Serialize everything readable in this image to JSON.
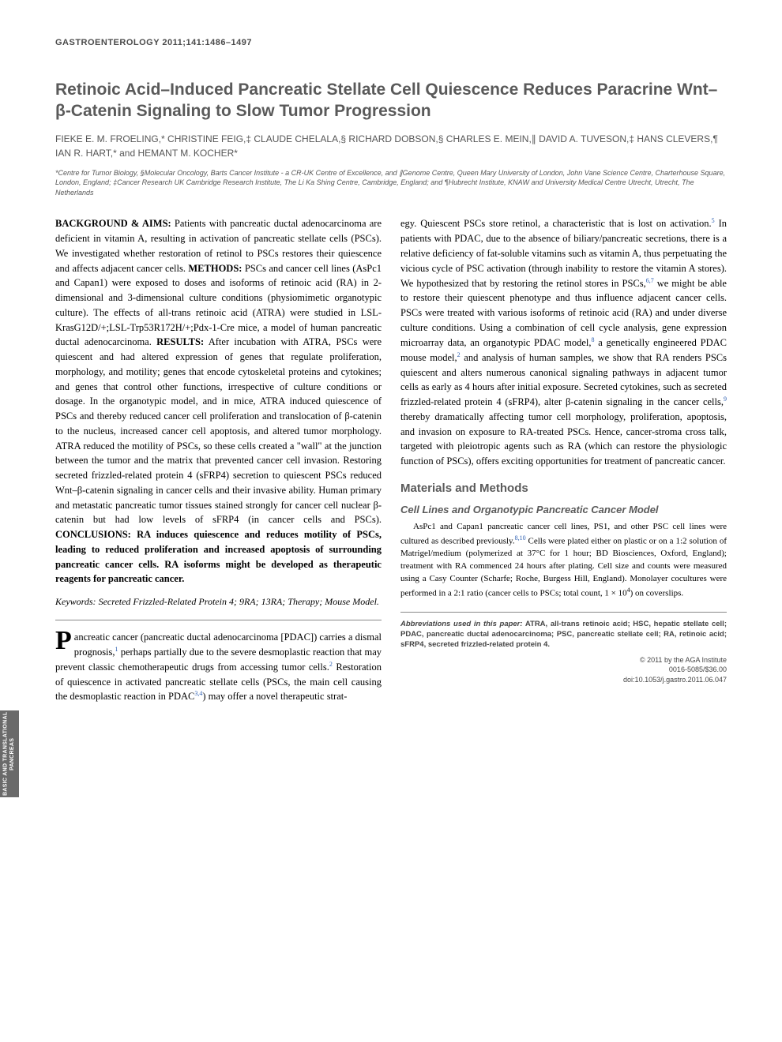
{
  "journal_header": "GASTROENTEROLOGY 2011;141:1486–1497",
  "title": "Retinoic Acid–Induced Pancreatic Stellate Cell Quiescence Reduces Paracrine Wnt–β-Catenin Signaling to Slow Tumor Progression",
  "authors": "FIEKE E. M. FROELING,* CHRISTINE FEIG,‡ CLAUDE CHELALA,§ RICHARD DOBSON,§ CHARLES E. MEIN,∥ DAVID A. TUVESON,‡ HANS CLEVERS,¶ IAN R. HART,* and HEMANT M. KOCHER*",
  "affiliations": "*Centre for Tumor Biology, §Molecular Oncology, Barts Cancer Institute - a CR-UK Centre of Excellence, and ∥Genome Centre, Queen Mary University of London, John Vane Science Centre, Charterhouse Square, London, England; ‡Cancer Research UK Cambridge Research Institute, The Li Ka Shing Centre, Cambridge, England; and ¶Hubrecht Institute, KNAW and University Medical Centre Utrecht, Utrecht, The Netherlands",
  "abstract": {
    "background_label": "BACKGROUND & AIMS:",
    "background": " Patients with pancreatic ductal adenocarcinoma are deficient in vitamin A, resulting in activation of pancreatic stellate cells (PSCs). We investigated whether restoration of retinol to PSCs restores their quiescence and affects adjacent cancer cells. ",
    "methods_label": "METHODS:",
    "methods": " PSCs and cancer cell lines (AsPc1 and Capan1) were exposed to doses and isoforms of retinoic acid (RA) in 2-dimensional and 3-dimensional culture conditions (physiomimetic organotypic culture). The effects of all-trans retinoic acid (ATRA) were studied in LSL-KrasG12D/+;LSL-Trp53R172H/+;Pdx-1-Cre mice, a model of human pancreatic ductal adenocarcinoma. ",
    "results_label": "RESULTS:",
    "results": " After incubation with ATRA, PSCs were quiescent and had altered expression of genes that regulate proliferation, morphology, and motility; genes that encode cytoskeletal proteins and cytokines; and genes that control other functions, irrespective of culture conditions or dosage. In the organotypic model, and in mice, ATRA induced quiescence of PSCs and thereby reduced cancer cell proliferation and translocation of β-catenin to the nucleus, increased cancer cell apoptosis, and altered tumor morphology. ATRA reduced the motility of PSCs, so these cells created a \"wall\" at the junction between the tumor and the matrix that prevented cancer cell invasion. Restoring secreted frizzled-related protein 4 (sFRP4) secretion to quiescent PSCs reduced Wnt–β-catenin signaling in cancer cells and their invasive ability. Human primary and metastatic pancreatic tumor tissues stained strongly for cancer cell nuclear β-catenin but had low levels of sFRP4 (in cancer cells and PSCs). ",
    "conclusions_label": "CONCLUSIONS:",
    "conclusions": " RA induces quiescence and reduces motility of PSCs, leading to reduced proliferation and increased apoptosis of surrounding pancreatic cancer cells. RA isoforms might be developed as therapeutic reagents for pancreatic cancer."
  },
  "keywords_label": "Keywords:",
  "keywords": " Secreted Frizzled-Related Protein 4; 9RA; 13RA; Therapy; Mouse Model.",
  "intro": {
    "dropcap": "P",
    "p1a": "ancreatic cancer (pancreatic ductal adenocarcinoma [PDAC]) carries a dismal prognosis,",
    "ref1": "1",
    "p1b": " perhaps partially due to the severe desmoplastic reaction that may prevent classic chemotherapeutic drugs from accessing tumor cells.",
    "ref2": "2",
    "p1c": " Restoration of quiescence in activated pancreatic stellate cells (PSCs, the main cell causing the desmoplastic reaction in PDAC",
    "ref34": "3,4",
    "p1d": ") may offer a novel therapeutic strat-"
  },
  "col2": {
    "p1a": "egy. Quiescent PSCs store retinol, a characteristic that is lost on activation.",
    "ref5": "5",
    "p1b": " In patients with PDAC, due to the absence of biliary/pancreatic secretions, there is a relative deficiency of fat-soluble vitamins such as vitamin A, thus perpetuating the vicious cycle of PSC activation (through inability to restore the vitamin A stores). We hypothesized that by restoring the retinol stores in PSCs,",
    "ref67": "6,7",
    "p1c": " we might be able to restore their quiescent phenotype and thus influence adjacent cancer cells. PSCs were treated with various isoforms of retinoic acid (RA) and under diverse culture conditions. Using a combination of cell cycle analysis, gene expression microarray data, an organotypic PDAC model,",
    "ref8": "8",
    "p1d": " a genetically engineered PDAC mouse model,",
    "ref2b": "2",
    "p1e": " and analysis of human samples, we show that RA renders PSCs quiescent and alters numerous canonical signaling pathways in adjacent tumor cells as early as 4 hours after initial exposure. Secreted cytokines, such as secreted frizzled-related protein 4 (sFRP4), alter β-catenin signaling in the cancer cells,",
    "ref9": "9",
    "p1f": " thereby dramatically affecting tumor cell morphology, proliferation, apoptosis, and invasion on exposure to RA-treated PSCs. Hence, cancer-stroma cross talk, targeted with pleiotropic agents such as RA (which can restore the physiologic function of PSCs), offers exciting opportunities for treatment of pancreatic cancer."
  },
  "materials_heading": "Materials and Methods",
  "subsection1_heading": "Cell Lines and Organotypic Pancreatic Cancer Model",
  "methods_para": {
    "p1a": "AsPc1 and Capan1 pancreatic cancer cell lines, PS1, and other PSC cell lines were cultured as described previously.",
    "ref810": "8,10",
    "p1b": " Cells were plated either on plastic or on a 1:2 solution of Matrigel/medium (polymerized at 37°C for 1 hour; BD Biosciences, Oxford, England); treatment with RA commenced 24 hours after plating. Cell size and counts were measured using a Casy Counter (Scharfe; Roche, Burgess Hill, England). Monolayer cocultures were performed in a 2:1 ratio (cancer cells to PSCs; total count, 1 × 10",
    "exp4": "4",
    "p1c": ") on coverslips."
  },
  "footer": {
    "abbrev_label": "Abbreviations used in this paper:",
    "abbrev": " ATRA, all-trans retinoic acid; HSC, hepatic stellate cell; PDAC, pancreatic ductal adenocarcinoma; PSC, pancreatic stellate cell; RA, retinoic acid; sFRP4, secreted frizzled-related protein 4.",
    "copyright1": "© 2011 by the AGA Institute",
    "copyright2": "0016-5085/$36.00",
    "doi": "doi:10.1053/j.gastro.2011.06.047"
  },
  "side_tab": "BASIC AND TRANSLATIONAL PANCREAS",
  "colors": {
    "heading_gray": "#5a5a5a",
    "body_text": "#000000",
    "ref_blue": "#2a5db0",
    "tab_bg": "#6a6a6a"
  }
}
